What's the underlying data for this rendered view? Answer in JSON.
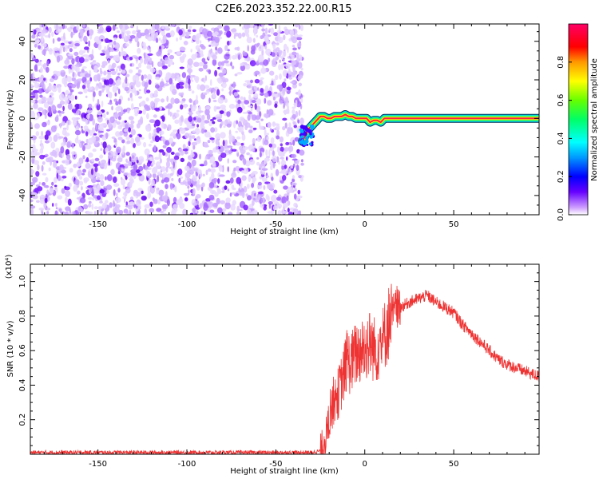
{
  "title": "C2E6.2023.352.22.00.R15",
  "colors": {
    "snr_line": "#ee3333",
    "axis": "#000000",
    "background": "#ffffff"
  },
  "chart_data": [
    {
      "type": "heatmap",
      "xlabel": "Height of straight line (km)",
      "ylabel": "Frequency (Hz)",
      "xlim": [
        -188,
        98
      ],
      "ylim": [
        -50,
        49
      ],
      "xticks": [
        "-150",
        "-100",
        "-50",
        "0",
        "50"
      ],
      "yticks": [
        "-40",
        "-20",
        "0",
        "20",
        "40"
      ],
      "grid": false,
      "colorbar": {
        "label": "Normalized spectral amplitude",
        "range": [
          0,
          1
        ],
        "ticks": [
          "0.0",
          "0.2",
          "0.4",
          "0.6",
          "0.8"
        ],
        "colormap": "rainbow (violet-blue-cyan-green-yellow-red-magenta)"
      },
      "regions": [
        {
          "x_range": [
            -188,
            -35
          ],
          "description_values": "scattered low-amplitude noise, normalized amplitude ~0.0-0.1",
          "freq_range": [
            -50,
            49
          ]
        },
        {
          "x_range": [
            -35,
            10
          ],
          "description_values": "signal ramp, frequency rises from about -12 Hz to about 1 Hz",
          "freq_range": [
            -12,
            2
          ]
        },
        {
          "x_range": [
            10,
            98
          ],
          "description_values": "steady signal near 0 Hz, normalized amplitude ~1.0",
          "freq_range": [
            -1,
            1
          ]
        }
      ],
      "signal_track": {
        "x": [
          -35,
          -33,
          -31,
          -29,
          -27,
          -25,
          -23,
          -21,
          -19,
          -17,
          -15,
          -13,
          -11,
          -9,
          -7,
          -5,
          -3,
          -1,
          1,
          3,
          5,
          7,
          9,
          11,
          98
        ],
        "freq": [
          -12,
          -8,
          -5,
          -3,
          -1,
          1,
          1,
          0,
          0,
          1,
          1,
          1,
          2,
          1,
          1,
          0,
          0,
          0,
          0,
          -2,
          -1,
          -1,
          -2,
          0,
          0
        ]
      }
    },
    {
      "type": "line",
      "xlabel": "Height of straight line (km)",
      "ylabel": "SNR (10 * v/v)",
      "y_multiplier": "(x10⁴)",
      "xlim": [
        -188,
        98
      ],
      "ylim": [
        0,
        1.1
      ],
      "xticks": [
        "-150",
        "-100",
        "-50",
        "0",
        "50"
      ],
      "yticks": [
        "0.2",
        "0.4",
        "0.6",
        "0.8",
        "1.0"
      ],
      "grid": false,
      "series": [
        {
          "color": "#ee3333",
          "x": [
            -188,
            -60,
            -30,
            -25,
            -22,
            -20,
            -18,
            -15,
            -12,
            -10,
            -8,
            -5,
            -2,
            0,
            3,
            6,
            10,
            13,
            15,
            18,
            20,
            25,
            30,
            35,
            40,
            45,
            50,
            55,
            60,
            65,
            70,
            75,
            80,
            85,
            90,
            95,
            98
          ],
          "y": [
            0.01,
            0.01,
            0.01,
            0.02,
            0.1,
            0.2,
            0.3,
            0.35,
            0.45,
            0.55,
            0.52,
            0.58,
            0.6,
            0.62,
            0.64,
            0.6,
            0.65,
            0.75,
            0.8,
            0.85,
            0.85,
            0.88,
            0.9,
            0.92,
            0.88,
            0.85,
            0.82,
            0.75,
            0.7,
            0.65,
            0.6,
            0.55,
            0.52,
            0.5,
            0.48,
            0.46,
            0.45
          ]
        }
      ]
    }
  ]
}
